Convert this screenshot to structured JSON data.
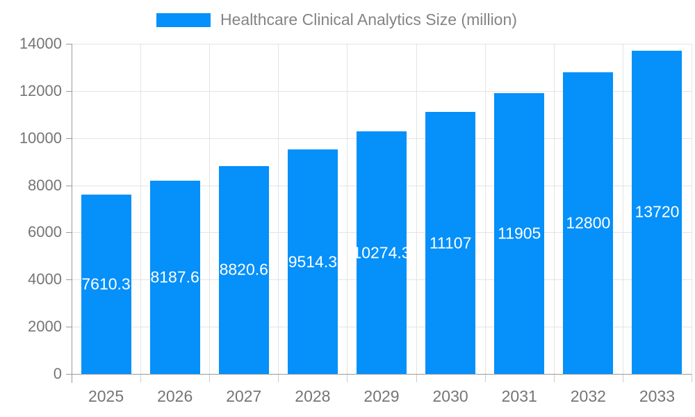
{
  "legend": {
    "label": "Healthcare Clinical Analytics Size (million)"
  },
  "colors": {
    "bar": "#0590fa",
    "grid": "#e3e3e3",
    "axis": "#999999",
    "x_tick": "#cccccc",
    "axis_text": "#757575",
    "legend_text": "#848484",
    "value_text": "#ffffff",
    "background": "#ffffff"
  },
  "chart_data": {
    "type": "bar",
    "title": "Healthcare Clinical Analytics Size (million)",
    "categories": [
      "2025",
      "2026",
      "2027",
      "2028",
      "2029",
      "2030",
      "2031",
      "2032",
      "2033"
    ],
    "values": [
      7610.3,
      8187.6,
      8820.6,
      9514.3,
      10274.3,
      11107,
      11905,
      12800,
      13720
    ],
    "value_labels": [
      "7610.3",
      "8187.6",
      "8820.6",
      "9514.3",
      "10274.3",
      "11107",
      "11905",
      "12800",
      "13720"
    ],
    "xlabel": "",
    "ylabel": "",
    "ylim": [
      0,
      14000
    ],
    "ytick_step": 2000,
    "ytick_labels": [
      "0",
      "2000",
      "4000",
      "6000",
      "8000",
      "10000",
      "12000",
      "14000"
    ],
    "grid": true,
    "legend_position": "top",
    "value_label_position": "inside-center"
  }
}
